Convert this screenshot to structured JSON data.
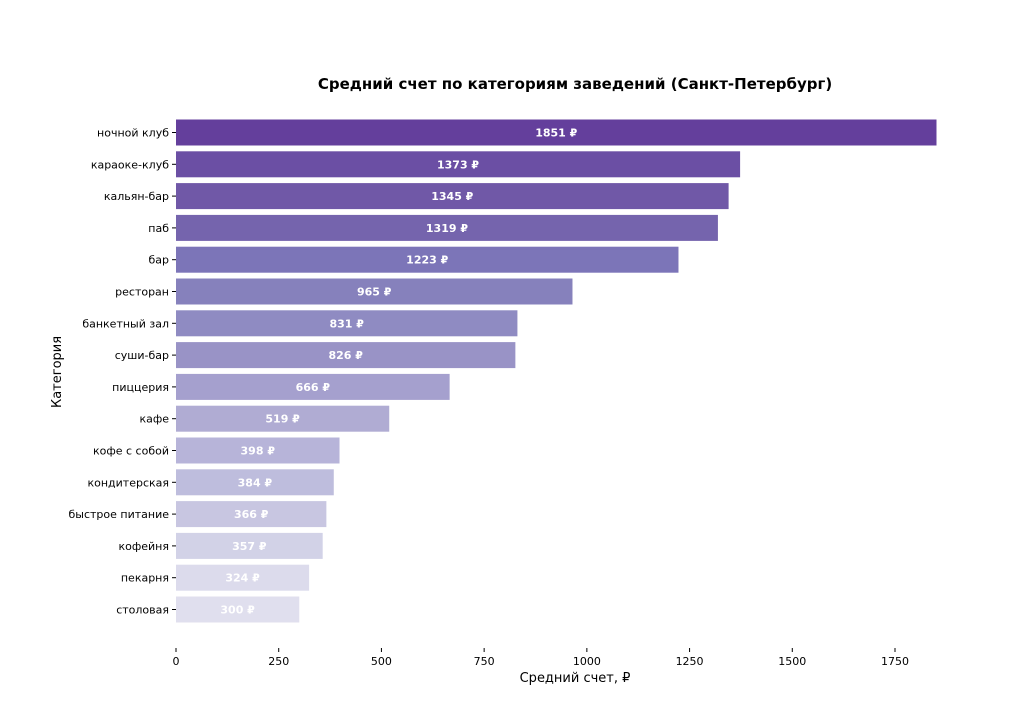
{
  "chart_data": {
    "type": "bar",
    "orientation": "horizontal",
    "title": "Средний счет по категориям заведений (Санкт-Петербург)",
    "xlabel": "Средний счет, ₽",
    "ylabel": "Категория",
    "value_suffix": " ₽",
    "xlim": [
      0,
      1850
    ],
    "xticks": [
      0,
      250,
      500,
      750,
      1000,
      1250,
      1500,
      1750
    ],
    "grid": false,
    "categories": [
      "ночной клуб",
      "караоке-клуб",
      "кальян-бар",
      "паб",
      "бар",
      "ресторан",
      "банкетный зал",
      "суши-бар",
      "пиццерия",
      "кафе",
      "кофе с собой",
      "кондитерская",
      "быстрое питание",
      "кофейня",
      "пекарня",
      "столовая"
    ],
    "values": [
      1851,
      1373,
      1345,
      1319,
      1223,
      965,
      831,
      826,
      666,
      519,
      398,
      384,
      366,
      357,
      324,
      300
    ],
    "colors": [
      "#643f9c",
      "#6b4fa4",
      "#7058a7",
      "#7564ad",
      "#7c75b8",
      "#8681bc",
      "#8f8bc2",
      "#9993c6",
      "#a5a0ce",
      "#b0acd3",
      "#b7b4d9",
      "#bebddd",
      "#c8c6e1",
      "#d2d2e7",
      "#dcdbec",
      "#e0dfee"
    ]
  }
}
